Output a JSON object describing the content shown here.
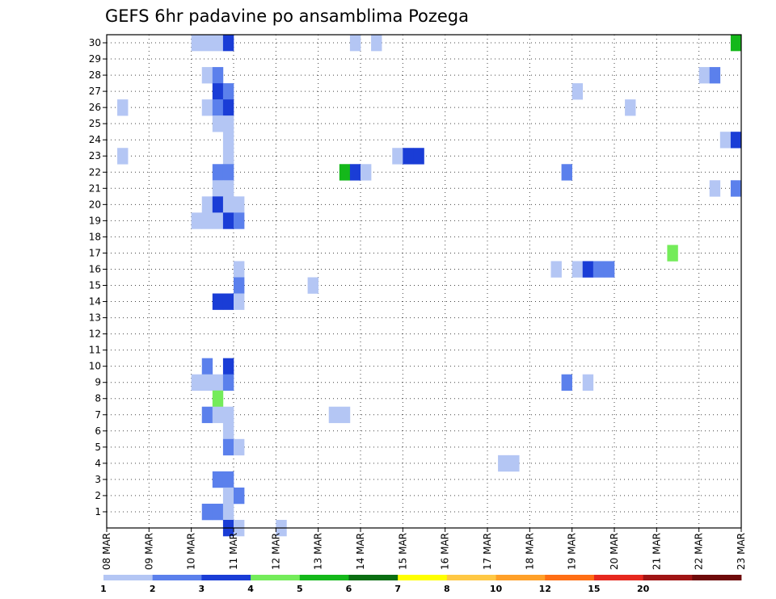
{
  "chart_data": {
    "type": "heatmap",
    "title": "GEFS 6hr padavine po ansamblima Pozega",
    "xlabel": "",
    "ylabel": "",
    "x_tick_labels": [
      "08 MAR",
      "09 MAR",
      "10 MAR",
      "11 MAR",
      "12 MAR",
      "13 MAR",
      "14 MAR",
      "15 MAR",
      "16 MAR",
      "17 MAR",
      "18 MAR",
      "19 MAR",
      "20 MAR",
      "21 MAR",
      "22 MAR",
      "23 MAR"
    ],
    "x_range_days": [
      0,
      15
    ],
    "y_tick_labels": [
      "1",
      "2",
      "3",
      "4",
      "5",
      "6",
      "7",
      "8",
      "9",
      "10",
      "11",
      "12",
      "13",
      "14",
      "15",
      "16",
      "17",
      "18",
      "19",
      "20",
      "21",
      "22",
      "23",
      "24",
      "25",
      "26",
      "27",
      "28",
      "29",
      "30"
    ],
    "y_range": [
      0,
      30
    ],
    "time_step_hours": 6,
    "grid": "dotted",
    "legend": {
      "placement": "bottom",
      "thresholds": [
        "1",
        "2",
        "3",
        "4",
        "5",
        "6",
        "7",
        "8",
        "10",
        "12",
        "15",
        "20"
      ],
      "colors": [
        "#b4c6f4",
        "#5b80ec",
        "#1a3dd6",
        "#74ec5a",
        "#14b81a",
        "#0a6e12",
        "#ffff00",
        "#ffc844",
        "#ffa028",
        "#ff6e14",
        "#e6281e",
        "#a01414",
        "#6e0a0a"
      ]
    },
    "cells": [
      [
        30,
        2.0,
        1
      ],
      [
        30,
        2.25,
        1
      ],
      [
        30,
        2.5,
        1
      ],
      [
        30,
        2.75,
        3
      ],
      [
        30,
        5.75,
        1
      ],
      [
        30,
        6.25,
        1
      ],
      [
        30,
        14.75,
        5
      ],
      [
        28,
        2.25,
        1
      ],
      [
        28,
        2.5,
        2
      ],
      [
        28,
        14.0,
        1
      ],
      [
        28,
        14.25,
        2
      ],
      [
        27,
        2.5,
        3
      ],
      [
        27,
        2.75,
        2
      ],
      [
        27,
        11.0,
        1
      ],
      [
        26,
        0.25,
        1
      ],
      [
        26,
        2.25,
        1
      ],
      [
        26,
        2.5,
        2
      ],
      [
        26,
        2.75,
        3
      ],
      [
        26,
        12.25,
        1
      ],
      [
        25,
        2.5,
        1
      ],
      [
        25,
        2.75,
        1
      ],
      [
        24,
        2.75,
        1
      ],
      [
        24,
        14.5,
        1
      ],
      [
        24,
        14.75,
        3
      ],
      [
        23,
        0.25,
        1
      ],
      [
        23,
        2.75,
        1
      ],
      [
        23,
        6.75,
        1
      ],
      [
        23,
        7.0,
        3
      ],
      [
        23,
        7.25,
        3
      ],
      [
        22,
        2.5,
        2
      ],
      [
        22,
        2.75,
        2
      ],
      [
        22,
        5.5,
        5
      ],
      [
        22,
        5.75,
        3
      ],
      [
        22,
        6.0,
        1
      ],
      [
        22,
        10.75,
        2
      ],
      [
        21,
        2.5,
        1
      ],
      [
        21,
        2.75,
        1
      ],
      [
        21,
        14.25,
        1
      ],
      [
        21,
        14.75,
        2
      ],
      [
        20,
        2.25,
        1
      ],
      [
        20,
        2.5,
        3
      ],
      [
        20,
        2.75,
        1
      ],
      [
        20,
        3.0,
        1
      ],
      [
        19,
        2.0,
        1
      ],
      [
        19,
        2.25,
        1
      ],
      [
        19,
        2.5,
        1
      ],
      [
        19,
        2.75,
        3
      ],
      [
        19,
        3.0,
        2
      ],
      [
        17,
        13.25,
        4
      ],
      [
        16,
        3.0,
        1
      ],
      [
        16,
        10.5,
        1
      ],
      [
        16,
        11.0,
        1
      ],
      [
        16,
        11.25,
        3
      ],
      [
        16,
        11.5,
        2
      ],
      [
        16,
        11.75,
        2
      ],
      [
        15,
        3.0,
        2
      ],
      [
        15,
        4.75,
        1
      ],
      [
        14,
        2.5,
        3
      ],
      [
        14,
        2.75,
        3
      ],
      [
        14,
        3.0,
        1
      ],
      [
        10,
        2.25,
        2
      ],
      [
        10,
        2.75,
        3
      ],
      [
        9,
        2.0,
        1
      ],
      [
        9,
        2.25,
        1
      ],
      [
        9,
        2.5,
        1
      ],
      [
        9,
        2.75,
        2
      ],
      [
        9,
        10.75,
        2
      ],
      [
        9,
        11.25,
        1
      ],
      [
        8,
        2.5,
        4
      ],
      [
        7,
        2.25,
        2
      ],
      [
        7,
        2.5,
        1
      ],
      [
        7,
        2.75,
        1
      ],
      [
        7,
        5.25,
        1
      ],
      [
        7,
        5.5,
        1
      ],
      [
        6,
        2.75,
        1
      ],
      [
        5,
        2.75,
        2
      ],
      [
        5,
        3.0,
        1
      ],
      [
        4,
        9.25,
        1
      ],
      [
        4,
        9.5,
        1
      ],
      [
        3,
        2.5,
        2
      ],
      [
        3,
        2.75,
        2
      ],
      [
        2,
        2.75,
        1
      ],
      [
        2,
        3.0,
        2
      ],
      [
        1,
        2.25,
        2
      ],
      [
        1,
        2.5,
        2
      ],
      [
        1,
        2.75,
        1
      ],
      [
        0,
        2.75,
        3
      ],
      [
        0,
        3.0,
        1
      ],
      [
        0,
        4.0,
        1
      ]
    ]
  }
}
